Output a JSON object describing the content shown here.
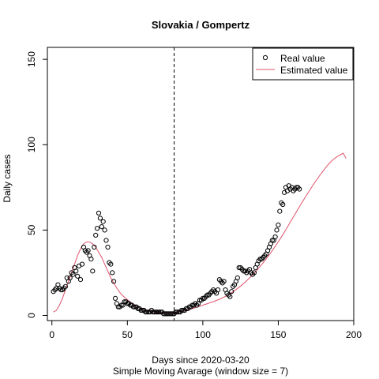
{
  "chart_data": {
    "type": "scatter",
    "title": "Slovakia / Gompertz",
    "xlabel": "Days since 2020-03-20",
    "xlabel2": "Simple Moving Avarage (window size = 7)",
    "ylabel": "Daily cases",
    "xlim": [
      -3,
      200
    ],
    "ylim": [
      -3,
      157
    ],
    "xticks": [
      0,
      50,
      100,
      150,
      200
    ],
    "yticks": [
      0,
      50,
      100,
      150
    ],
    "vline_x": 81,
    "legend": {
      "position": "top-right",
      "entries": [
        "Real value",
        "Estimated value"
      ]
    },
    "colors": {
      "real": "#000000",
      "estimated": "#DF536B",
      "vline": "#000000"
    },
    "series": [
      {
        "name": "Real value",
        "style": "points",
        "x": [
          1,
          2,
          3,
          4,
          5,
          6,
          7,
          8,
          9,
          10,
          11,
          12,
          13,
          14,
          15,
          16,
          17,
          18,
          19,
          20,
          21,
          22,
          23,
          24,
          25,
          26,
          27,
          28,
          29,
          30,
          31,
          32,
          33,
          34,
          35,
          36,
          37,
          38,
          39,
          40,
          41,
          42,
          43,
          44,
          45,
          46,
          47,
          48,
          49,
          50,
          51,
          52,
          53,
          54,
          55,
          56,
          57,
          58,
          59,
          60,
          61,
          62,
          63,
          64,
          65,
          66,
          67,
          68,
          69,
          70,
          71,
          72,
          73,
          74,
          75,
          76,
          77,
          78,
          79,
          80,
          81,
          82,
          83,
          84,
          85,
          86,
          87,
          88,
          89,
          90,
          91,
          92,
          93,
          94,
          95,
          96,
          97,
          98,
          99,
          100,
          101,
          102,
          103,
          104,
          105,
          106,
          107,
          108,
          109,
          110,
          111,
          112,
          113,
          114,
          115,
          116,
          117,
          118,
          119,
          120,
          121,
          122,
          123,
          124,
          125,
          126,
          127,
          128,
          129,
          130,
          131,
          132,
          133,
          134,
          135,
          136,
          137,
          138,
          139,
          140,
          141,
          142,
          143,
          144,
          145,
          146,
          147,
          148,
          149,
          150,
          151,
          152,
          153,
          154,
          155,
          156,
          157,
          158,
          159,
          160,
          161,
          162,
          163,
          164
        ],
        "y": [
          14,
          15,
          16,
          18,
          16,
          15,
          15,
          16,
          17,
          22,
          20,
          22,
          25,
          24,
          28,
          26,
          23,
          29,
          21,
          30,
          40,
          38,
          37,
          38,
          35,
          33,
          26,
          40,
          47,
          51,
          60,
          57,
          52,
          55,
          50,
          44,
          40,
          31,
          30,
          25,
          20,
          10,
          7,
          5,
          5,
          6,
          6,
          8,
          8,
          7,
          7,
          6,
          6,
          5,
          5,
          5,
          4,
          4,
          3,
          3,
          3,
          2,
          2,
          2,
          2,
          3,
          2,
          2,
          2,
          2,
          2,
          2,
          2,
          1,
          1,
          1,
          1,
          1,
          1,
          1,
          1,
          2,
          2,
          2,
          2,
          3,
          3,
          3,
          4,
          4,
          5,
          5,
          6,
          6,
          7,
          6,
          7,
          9,
          9,
          10,
          10,
          11,
          12,
          12,
          13,
          14,
          15,
          14,
          13,
          15,
          21,
          20,
          19,
          20,
          15,
          13,
          12,
          11,
          14,
          17,
          18,
          20,
          22,
          28,
          28,
          27,
          26,
          26,
          25,
          26,
          27,
          25,
          24,
          25,
          28,
          30,
          32,
          33,
          33,
          34,
          35,
          36,
          38,
          40,
          42,
          44,
          44,
          46,
          50,
          53,
          61,
          66,
          65,
          72,
          75,
          73,
          76,
          74,
          75,
          73,
          74,
          75,
          75,
          74
        ]
      },
      {
        "name": "Estimated value",
        "style": "line",
        "x": [
          1,
          3,
          5,
          7,
          9,
          11,
          13,
          15,
          17,
          19,
          21,
          23,
          25,
          27,
          29,
          31,
          33,
          35,
          37,
          39,
          41,
          43,
          45,
          47,
          49,
          51,
          53,
          55,
          57,
          59,
          61,
          63,
          65,
          67,
          69,
          71,
          73,
          75,
          77,
          79,
          81,
          83,
          85,
          87,
          89,
          91,
          93,
          95,
          97,
          99,
          101,
          103,
          105,
          107,
          109,
          111,
          113,
          115,
          117,
          119,
          121,
          123,
          125,
          127,
          129,
          131,
          133,
          135,
          137,
          139,
          141,
          143,
          145,
          147,
          149,
          151,
          153,
          155,
          157,
          159,
          161,
          163,
          165,
          167,
          169,
          171,
          173,
          175,
          177,
          179,
          181,
          183,
          185,
          187,
          189,
          191,
          193,
          195
        ],
        "y": [
          2,
          3,
          6,
          10,
          15,
          20,
          25,
          30,
          35,
          39,
          42,
          43,
          43,
          42,
          40,
          37,
          34,
          30,
          26,
          22,
          19,
          16,
          13.5,
          11.5,
          10,
          8.5,
          7.2,
          6,
          5,
          4.2,
          3.6,
          3,
          2.6,
          2.3,
          2,
          1.8,
          1.7,
          1.6,
          1.6,
          1.7,
          1.8,
          2,
          2.3,
          2.7,
          3.1,
          3.5,
          4,
          4.6,
          5.1,
          5.7,
          6.3,
          6.9,
          7.5,
          8.1,
          8.8,
          9.5,
          10.3,
          11.2,
          12.2,
          13.3,
          14.5,
          15.8,
          17.2,
          18.7,
          20.3,
          22,
          23.8,
          25.7,
          27.7,
          29.8,
          32,
          34.3,
          36.7,
          39.2,
          41.8,
          44.5,
          47.3,
          50.2,
          53.2,
          56.2,
          59.2,
          62.2,
          65.1,
          68,
          70.8,
          73.6,
          76.3,
          78.9,
          81.4,
          83.8,
          86.1,
          88.3,
          90.2,
          91.8,
          93,
          94,
          95,
          92
        ]
      }
    ]
  }
}
